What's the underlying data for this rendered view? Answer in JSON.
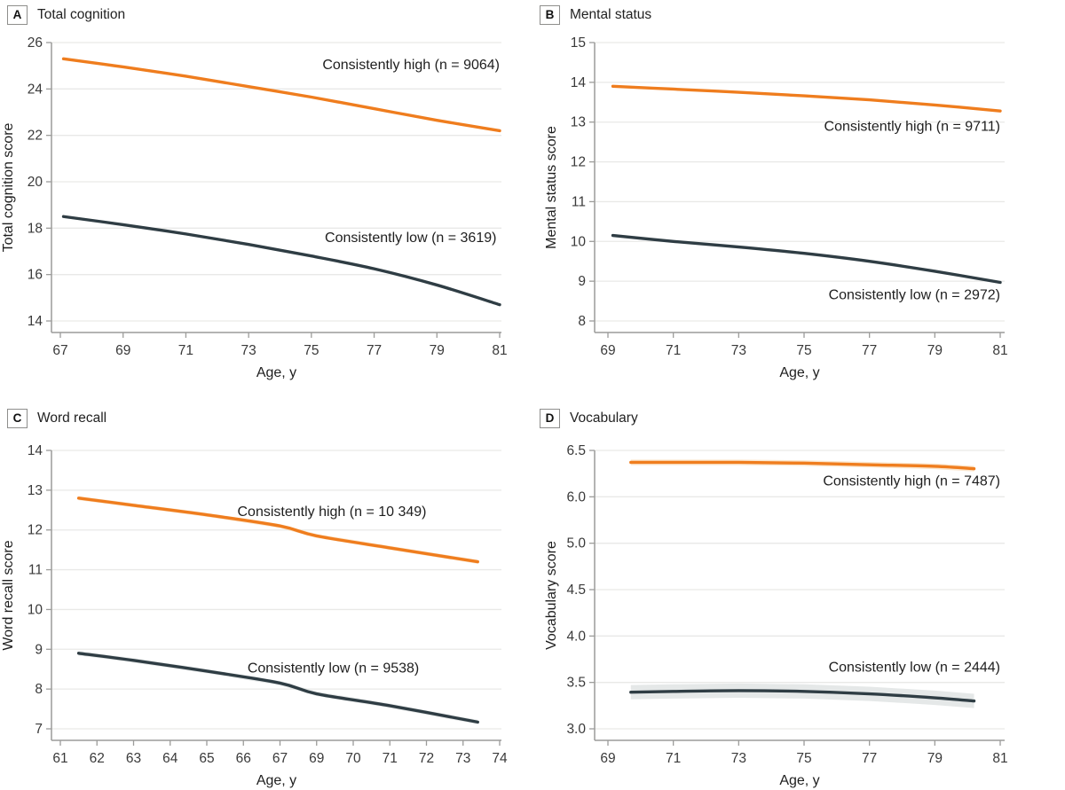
{
  "figure": {
    "colors": {
      "high_line": "#EF7D1E",
      "low_line": "#2F3D44",
      "high_band": "#F9D5AC",
      "low_band": "#D3D9D9",
      "grid": "#E9E9E7",
      "axis": "#9C9C9A",
      "tick_text": "#3A3A3A",
      "label_text": "#1E1E1E"
    }
  },
  "chart_data": [
    {
      "type": "line",
      "panel_label": "A",
      "title": "Total cognition",
      "xlabel": "Age, y",
      "ylabel": "Total cognition score",
      "x_ticks": [
        "67",
        "69",
        "71",
        "73",
        "75",
        "77",
        "79",
        "81"
      ],
      "xlim": [
        67,
        81
      ],
      "y_ticks": [
        "26",
        "24",
        "22",
        "20",
        "18",
        "16",
        "14"
      ],
      "ylim": [
        14,
        26
      ],
      "grid": true,
      "legend_position": "inline annotations",
      "series": [
        {
          "name": "Consistently high (n = 9064)",
          "role": "high",
          "x": [
            67.1,
            69,
            71,
            73,
            75,
            77,
            79,
            81
          ],
          "y": [
            25.3,
            24.95,
            24.55,
            24.1,
            23.65,
            23.15,
            22.65,
            22.2
          ],
          "band": 0.025,
          "label_at": [
            81,
            24.85
          ]
        },
        {
          "name": "Consistently low (n = 3619)",
          "role": "low",
          "x": [
            67.1,
            69,
            71,
            73,
            75,
            77,
            79,
            81
          ],
          "y": [
            18.5,
            18.15,
            17.75,
            17.3,
            16.8,
            16.25,
            15.55,
            14.7
          ],
          "band": 0.06,
          "label_at": [
            80.9,
            17.4
          ]
        }
      ]
    },
    {
      "type": "line",
      "panel_label": "B",
      "title": "Mental status",
      "xlabel": "Age, y",
      "ylabel": "Mental status score",
      "x_ticks": [
        "69",
        "71",
        "73",
        "75",
        "77",
        "79",
        "81"
      ],
      "xlim": [
        69,
        81
      ],
      "y_ticks": [
        "15",
        "14",
        "13",
        "12",
        "11",
        "10",
        "9",
        "8"
      ],
      "ylim": [
        8,
        15
      ],
      "grid": true,
      "legend_position": "inline annotations",
      "series": [
        {
          "name": "Consistently high (n = 9711)",
          "role": "high",
          "x": [
            69.15,
            71,
            73,
            75,
            77,
            79,
            81
          ],
          "y": [
            13.9,
            13.83,
            13.75,
            13.66,
            13.56,
            13.43,
            13.28
          ],
          "band": 0.02,
          "label_at": [
            81,
            12.78
          ]
        },
        {
          "name": "Consistently low (n = 2972)",
          "role": "low",
          "x": [
            69.15,
            71,
            73,
            75,
            77,
            79,
            81
          ],
          "y": [
            10.15,
            10.0,
            9.86,
            9.7,
            9.5,
            9.25,
            8.97
          ],
          "band": 0.04,
          "label_at": [
            81,
            8.55
          ]
        }
      ]
    },
    {
      "type": "line",
      "panel_label": "C",
      "title": "Word recall",
      "xlabel": "Age, y",
      "ylabel": "Word recall score",
      "x_ticks": [
        "61",
        "62",
        "63",
        "64",
        "65",
        "66",
        "67",
        "69",
        "70",
        "71",
        "72",
        "73",
        "74"
      ],
      "xlim": [
        61,
        74
      ],
      "y_ticks": [
        "14",
        "13",
        "12",
        "11",
        "10",
        "9",
        "8",
        "7"
      ],
      "ylim": [
        7,
        14
      ],
      "grid": true,
      "legend_position": "inline annotations",
      "series": [
        {
          "name": "Consistently high (n = 10 349)",
          "role": "high",
          "x": [
            61.5,
            63,
            65,
            67,
            69,
            71,
            73.4
          ],
          "y": [
            12.8,
            12.62,
            12.38,
            12.1,
            11.85,
            11.55,
            11.2
          ],
          "band": 0.05,
          "label_at": [
            72,
            12.35
          ]
        },
        {
          "name": "Consistently low (n = 9538)",
          "role": "low",
          "x": [
            61.5,
            63,
            65,
            67,
            69,
            71,
            73.4
          ],
          "y": [
            8.9,
            8.72,
            8.45,
            8.15,
            7.88,
            7.58,
            7.17
          ],
          "band": 0.055,
          "label_at": [
            71.8,
            8.42
          ]
        }
      ]
    },
    {
      "type": "line",
      "panel_label": "D",
      "title": "Vocabulary",
      "xlabel": "Age, y",
      "ylabel": "Vocabulary score",
      "x_ticks": [
        "69",
        "71",
        "73",
        "75",
        "77",
        "79",
        "81"
      ],
      "xlim": [
        69,
        81
      ],
      "y_ticks": [
        "6.5",
        "6.0",
        "5.0",
        "4.5",
        "4.0",
        "3.5",
        "3.0"
      ],
      "ylim": [
        3.0,
        6.5
      ],
      "grid": true,
      "legend_position": "inline annotations",
      "series": [
        {
          "name": "Consistently high (n = 7487)",
          "role": "high",
          "x": [
            69.7,
            71,
            73,
            75,
            77,
            79,
            80.2
          ],
          "y": [
            6.35,
            6.35,
            6.35,
            6.34,
            6.32,
            6.3,
            6.27
          ],
          "band": 0.035,
          "label_at": [
            81,
            6.06
          ]
        },
        {
          "name": "Consistently low (n = 2444)",
          "role": "low",
          "x": [
            69.7,
            71,
            73,
            75,
            77,
            79,
            80.2
          ],
          "y": [
            3.46,
            3.47,
            3.48,
            3.47,
            3.44,
            3.39,
            3.35
          ],
          "band": 0.09,
          "label_at": [
            81,
            3.72
          ]
        }
      ]
    }
  ]
}
